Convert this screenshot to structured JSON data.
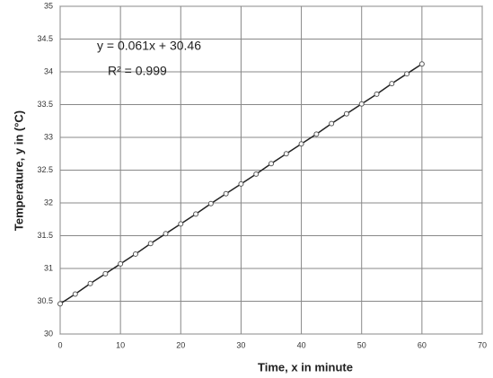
{
  "chart_data": {
    "type": "scatter",
    "x_label": "Time, x in minute",
    "y_label": "Temperature, y in (°C)",
    "annotations": [
      "y = 0.061x + 30.46",
      "R² = 0.999"
    ],
    "xlim": [
      0,
      70
    ],
    "xticks": [
      0,
      10,
      20,
      30,
      40,
      50,
      60,
      70
    ],
    "ylim": [
      30,
      35
    ],
    "yticks": [
      30,
      30.5,
      31,
      31.5,
      32,
      32.5,
      33,
      33.5,
      34,
      34.5,
      35
    ],
    "grid": true,
    "series": [
      {
        "name": "Temperature",
        "color": "#555555",
        "x": [
          0,
          2.5,
          5,
          7.5,
          10,
          12.5,
          15,
          17.5,
          20,
          22.5,
          25,
          27.5,
          30,
          32.5,
          35,
          37.5,
          40,
          42.5,
          45,
          47.5,
          50,
          52.5,
          55,
          57.5,
          60
        ],
        "values": [
          30.46,
          30.61,
          30.77,
          30.92,
          31.07,
          31.22,
          31.38,
          31.53,
          31.68,
          31.83,
          31.99,
          32.14,
          32.29,
          32.44,
          32.6,
          32.75,
          32.9,
          33.05,
          33.21,
          33.36,
          33.51,
          33.66,
          33.82,
          33.97,
          34.12
        ]
      }
    ]
  }
}
